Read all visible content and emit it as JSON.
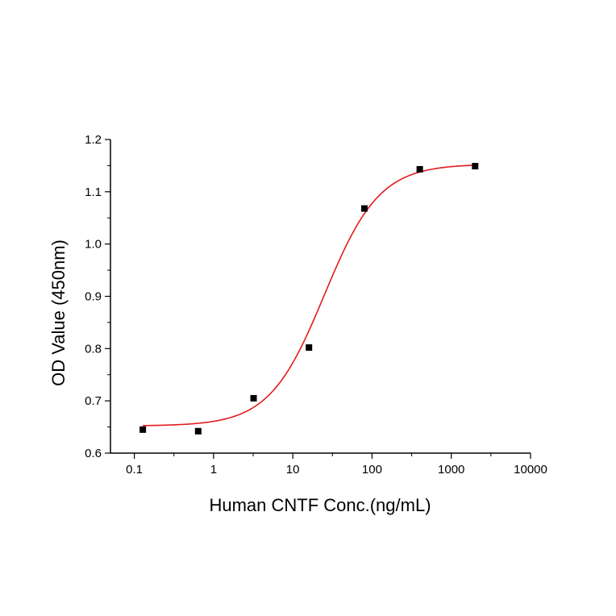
{
  "chart_data": {
    "type": "scatter",
    "xlabel": "Human CNTF Conc.(ng/mL)",
    "ylabel": "OD Value (450nm)",
    "xscale": "log",
    "xlim": [
      0.05,
      10000
    ],
    "ylim": [
      0.6,
      1.2
    ],
    "x_ticks": [
      "0.1",
      "1",
      "10",
      "100",
      "1000",
      "10000"
    ],
    "y_ticks": [
      "0.6",
      "0.7",
      "0.8",
      "0.9",
      "1.0",
      "1.1",
      "1.2"
    ],
    "grid": false,
    "points": {
      "x": [
        0.128,
        0.64,
        3.2,
        16,
        80,
        400,
        2000
      ],
      "y": [
        0.645,
        0.642,
        0.705,
        0.802,
        1.068,
        1.143,
        1.149
      ]
    },
    "fit_curve": {
      "model": "4-parameter logistic",
      "bottom": 0.652,
      "top": 1.153,
      "ec50": 25,
      "hill": 1.25,
      "x_range": [
        0.128,
        2000
      ]
    },
    "colors": {
      "points": "#000000",
      "fit": "#e41a1c",
      "axis": "#000000"
    }
  }
}
